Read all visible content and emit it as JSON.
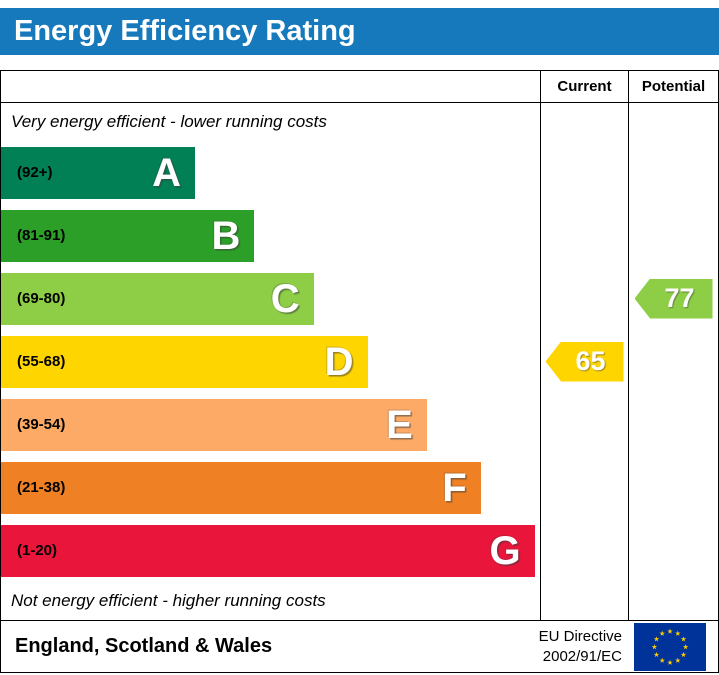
{
  "title": "Energy Efficiency Rating",
  "columns": {
    "current": "Current",
    "potential": "Potential"
  },
  "notes": {
    "top": "Very energy efficient - lower running costs",
    "bottom": "Not energy efficient - higher running costs"
  },
  "bands": [
    {
      "letter": "A",
      "range": "(92+)",
      "color": "#008054",
      "width_pct": 36
    },
    {
      "letter": "B",
      "range": "(81-91)",
      "color": "#2c9f29",
      "width_pct": 47
    },
    {
      "letter": "C",
      "range": "(69-80)",
      "color": "#8dce46",
      "width_pct": 58
    },
    {
      "letter": "D",
      "range": "(55-68)",
      "color": "#ffd500",
      "width_pct": 68
    },
    {
      "letter": "E",
      "range": "(39-54)",
      "color": "#fcaa65",
      "width_pct": 79
    },
    {
      "letter": "F",
      "range": "(21-38)",
      "color": "#ef8023",
      "width_pct": 89
    },
    {
      "letter": "G",
      "range": "(1-20)",
      "color": "#e9153b",
      "width_pct": 99
    }
  ],
  "current": {
    "value": "65",
    "band_index": 3,
    "color": "#ffd500"
  },
  "potential": {
    "value": "77",
    "band_index": 2,
    "color": "#8dce46"
  },
  "footer": {
    "region": "England, Scotland & Wales",
    "directive": [
      "EU Directive",
      "2002/91/EC"
    ]
  },
  "colors": {
    "title_bar": "#1579bc",
    "flag_blue": "#003399",
    "flag_stars": "#ffcc00",
    "border": "#000000"
  },
  "chart_data": {
    "type": "bar",
    "title": "Energy Efficiency Rating",
    "categories": [
      "A",
      "B",
      "C",
      "D",
      "E",
      "F",
      "G"
    ],
    "ranges": [
      "92+",
      "81-91",
      "69-80",
      "55-68",
      "39-54",
      "21-38",
      "1-20"
    ],
    "bar_relative_widths_pct": [
      36,
      47,
      58,
      68,
      79,
      89,
      99
    ],
    "colors": [
      "#008054",
      "#2c9f29",
      "#8dce46",
      "#ffd500",
      "#fcaa65",
      "#ef8023",
      "#e9153b"
    ],
    "columns": [
      "Current",
      "Potential"
    ],
    "current": {
      "value": 65,
      "band": "D"
    },
    "potential": {
      "value": 77,
      "band": "C"
    },
    "annotations": [
      "Very energy efficient - lower running costs",
      "Not energy efficient - higher running costs"
    ],
    "footer_region": "England, Scotland & Wales",
    "footer_directive": "EU Directive 2002/91/EC",
    "legend_position": "none",
    "grid": false
  }
}
